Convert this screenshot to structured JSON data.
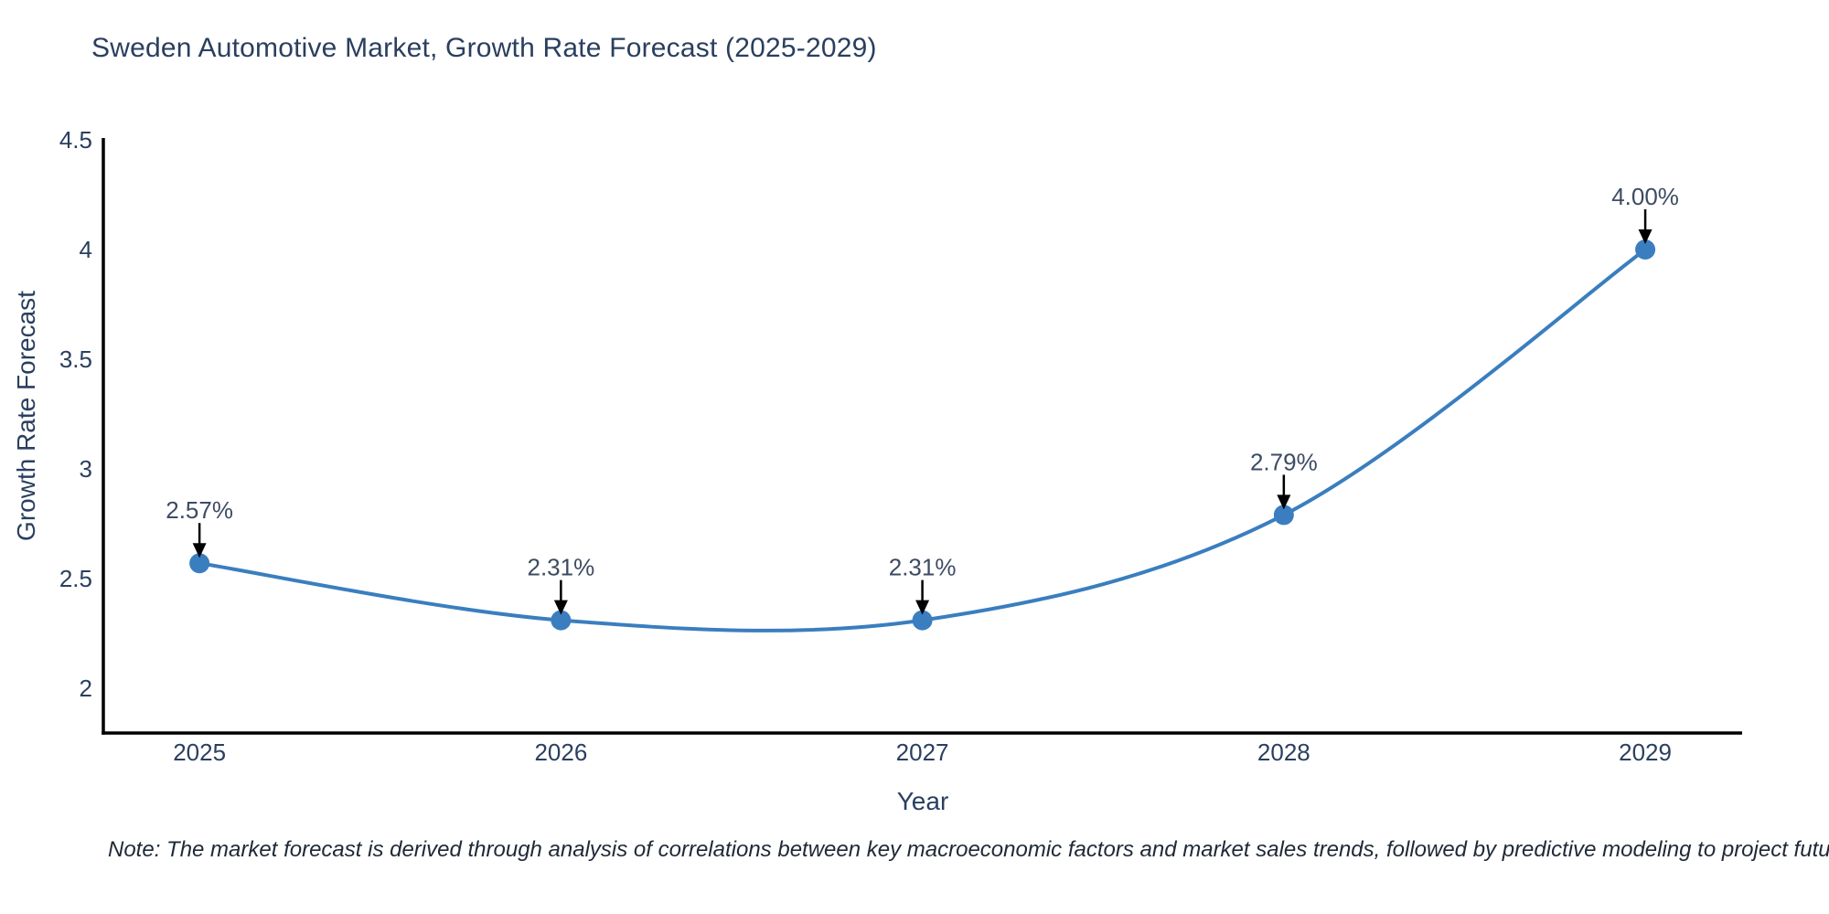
{
  "title": {
    "text": "Sweden Automotive Market, Growth Rate Forecast (2025-2029)",
    "color": "#2a3f5f"
  },
  "note": {
    "text": "Note: The market forecast is derived through analysis of correlations between key macroeconomic factors and market sales trends, followed by predictive modeling to project future sales"
  },
  "chart_data": {
    "type": "line",
    "title": "Sweden Automotive Market, Growth Rate Forecast (2025-2029)",
    "xlabel": "Year",
    "ylabel": "Growth Rate Forecast",
    "x": [
      2025,
      2026,
      2027,
      2028,
      2029
    ],
    "series": [
      {
        "name": "Growth Rate Forecast",
        "values": [
          2.57,
          2.31,
          2.31,
          2.79,
          4.0
        ],
        "point_labels": [
          "2.57%",
          "2.31%",
          "2.31%",
          "2.79%",
          "4.00%"
        ]
      }
    ],
    "x_tick_labels": [
      "2025",
      "2026",
      "2027",
      "2028",
      "2029"
    ],
    "y_ticks": [
      2,
      2.5,
      3,
      3.5,
      4,
      4.5
    ],
    "y_tick_labels": [
      "2",
      "2.5",
      "3",
      "3.5",
      "4",
      "4.5"
    ],
    "xlim": [
      2024.734,
      2029.268
    ],
    "ylim": [
      1.796,
      4.5
    ],
    "grid": false,
    "legend_position": "none",
    "line_shape": "spline",
    "annotations_style": "value-above-with-down-arrow",
    "colors": {
      "line": "#3a7ebf",
      "marker": "#3a7ebf",
      "axis": "#000000",
      "tick_text": "#2a3f5f",
      "annotation_text": "#3d4b63",
      "arrow": "#000000",
      "background": "#ffffff"
    }
  }
}
